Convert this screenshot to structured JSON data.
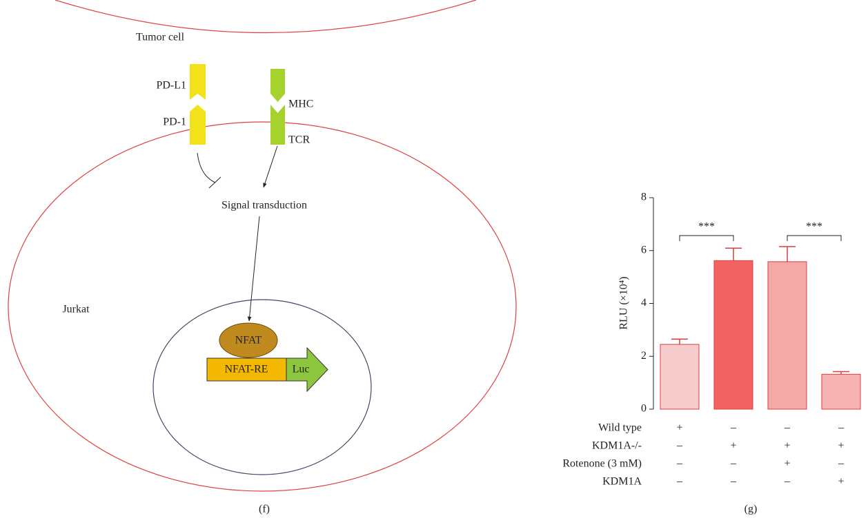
{
  "diagram": {
    "tumor_cell": "Tumor cell",
    "pd_l1": "PD-L1",
    "pd_1": "PD-1",
    "mhc": "MHC",
    "tcr": "TCR",
    "signal": "Signal transduction",
    "jurkat": "Jurkat",
    "nfat": "NFAT",
    "nfat_re": "NFAT-RE",
    "luc": "Luc",
    "caption": "(f)"
  },
  "chart_data": {
    "type": "bar",
    "caption": "(g)",
    "y_label": "RLU (×10⁴)",
    "categories": [
      null,
      null,
      null,
      null
    ],
    "series": [
      {
        "values": [
          2.45,
          5.62,
          5.58,
          1.32
        ],
        "errors": [
          0.2,
          0.47,
          0.57,
          0.1
        ],
        "colors": [
          "#f6cccc",
          "#f26464",
          "#f4a9a9",
          "#f7b3b3"
        ],
        "edge_color": "#e03c3c"
      }
    ],
    "ylim": [
      0,
      8
    ],
    "yticks": [
      0,
      2,
      4,
      6,
      8
    ],
    "annotations": [
      "***",
      "***"
    ],
    "conditions": [
      {
        "label": "Wild type",
        "values": [
          "+",
          "–",
          "–",
          "–"
        ]
      },
      {
        "label": "KDM1A-/-",
        "values": [
          "–",
          "+",
          "+",
          "+"
        ]
      },
      {
        "label": "Rotenone (3 mM)",
        "values": [
          "–",
          "–",
          "+",
          "–"
        ]
      },
      {
        "label": "KDM1A",
        "values": [
          "–",
          "–",
          "–",
          "+"
        ]
      }
    ]
  }
}
